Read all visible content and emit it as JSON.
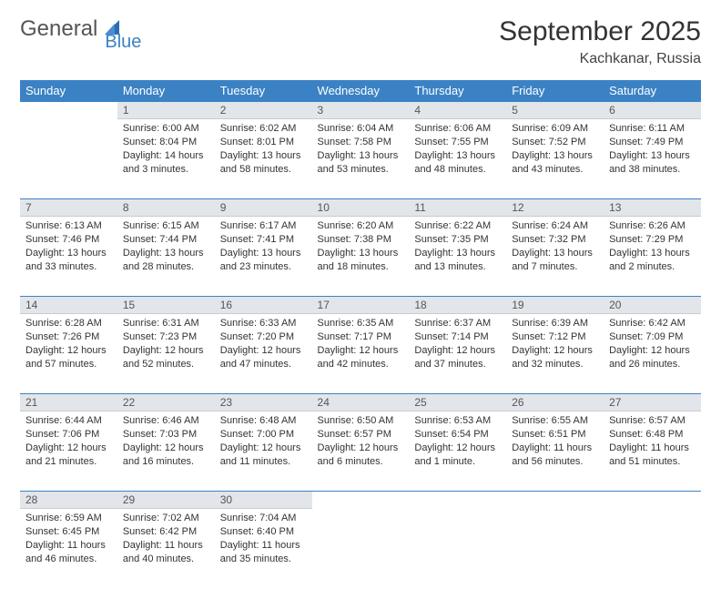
{
  "logo": {
    "text1": "General",
    "text2": "Blue"
  },
  "title": "September 2025",
  "location": "Kachkanar, Russia",
  "columns": [
    "Sunday",
    "Monday",
    "Tuesday",
    "Wednesday",
    "Thursday",
    "Friday",
    "Saturday"
  ],
  "colors": {
    "header_bg": "#3b82c4",
    "header_text": "#ffffff",
    "daynum_bg": "#e2e6ea",
    "row_border": "#3b82c4",
    "body_text": "#333333",
    "page_bg": "#ffffff"
  },
  "fonts": {
    "title_size_pt": 22,
    "location_size_pt": 12,
    "header_size_pt": 10,
    "cell_size_pt": 8
  },
  "weeks": [
    {
      "nums": [
        "",
        "1",
        "2",
        "3",
        "4",
        "5",
        "6"
      ],
      "cells": [
        {
          "sunrise": "",
          "sunset": "",
          "daylight": ""
        },
        {
          "sunrise": "Sunrise: 6:00 AM",
          "sunset": "Sunset: 8:04 PM",
          "daylight": "Daylight: 14 hours and 3 minutes."
        },
        {
          "sunrise": "Sunrise: 6:02 AM",
          "sunset": "Sunset: 8:01 PM",
          "daylight": "Daylight: 13 hours and 58 minutes."
        },
        {
          "sunrise": "Sunrise: 6:04 AM",
          "sunset": "Sunset: 7:58 PM",
          "daylight": "Daylight: 13 hours and 53 minutes."
        },
        {
          "sunrise": "Sunrise: 6:06 AM",
          "sunset": "Sunset: 7:55 PM",
          "daylight": "Daylight: 13 hours and 48 minutes."
        },
        {
          "sunrise": "Sunrise: 6:09 AM",
          "sunset": "Sunset: 7:52 PM",
          "daylight": "Daylight: 13 hours and 43 minutes."
        },
        {
          "sunrise": "Sunrise: 6:11 AM",
          "sunset": "Sunset: 7:49 PM",
          "daylight": "Daylight: 13 hours and 38 minutes."
        }
      ]
    },
    {
      "nums": [
        "7",
        "8",
        "9",
        "10",
        "11",
        "12",
        "13"
      ],
      "cells": [
        {
          "sunrise": "Sunrise: 6:13 AM",
          "sunset": "Sunset: 7:46 PM",
          "daylight": "Daylight: 13 hours and 33 minutes."
        },
        {
          "sunrise": "Sunrise: 6:15 AM",
          "sunset": "Sunset: 7:44 PM",
          "daylight": "Daylight: 13 hours and 28 minutes."
        },
        {
          "sunrise": "Sunrise: 6:17 AM",
          "sunset": "Sunset: 7:41 PM",
          "daylight": "Daylight: 13 hours and 23 minutes."
        },
        {
          "sunrise": "Sunrise: 6:20 AM",
          "sunset": "Sunset: 7:38 PM",
          "daylight": "Daylight: 13 hours and 18 minutes."
        },
        {
          "sunrise": "Sunrise: 6:22 AM",
          "sunset": "Sunset: 7:35 PM",
          "daylight": "Daylight: 13 hours and 13 minutes."
        },
        {
          "sunrise": "Sunrise: 6:24 AM",
          "sunset": "Sunset: 7:32 PM",
          "daylight": "Daylight: 13 hours and 7 minutes."
        },
        {
          "sunrise": "Sunrise: 6:26 AM",
          "sunset": "Sunset: 7:29 PM",
          "daylight": "Daylight: 13 hours and 2 minutes."
        }
      ]
    },
    {
      "nums": [
        "14",
        "15",
        "16",
        "17",
        "18",
        "19",
        "20"
      ],
      "cells": [
        {
          "sunrise": "Sunrise: 6:28 AM",
          "sunset": "Sunset: 7:26 PM",
          "daylight": "Daylight: 12 hours and 57 minutes."
        },
        {
          "sunrise": "Sunrise: 6:31 AM",
          "sunset": "Sunset: 7:23 PM",
          "daylight": "Daylight: 12 hours and 52 minutes."
        },
        {
          "sunrise": "Sunrise: 6:33 AM",
          "sunset": "Sunset: 7:20 PM",
          "daylight": "Daylight: 12 hours and 47 minutes."
        },
        {
          "sunrise": "Sunrise: 6:35 AM",
          "sunset": "Sunset: 7:17 PM",
          "daylight": "Daylight: 12 hours and 42 minutes."
        },
        {
          "sunrise": "Sunrise: 6:37 AM",
          "sunset": "Sunset: 7:14 PM",
          "daylight": "Daylight: 12 hours and 37 minutes."
        },
        {
          "sunrise": "Sunrise: 6:39 AM",
          "sunset": "Sunset: 7:12 PM",
          "daylight": "Daylight: 12 hours and 32 minutes."
        },
        {
          "sunrise": "Sunrise: 6:42 AM",
          "sunset": "Sunset: 7:09 PM",
          "daylight": "Daylight: 12 hours and 26 minutes."
        }
      ]
    },
    {
      "nums": [
        "21",
        "22",
        "23",
        "24",
        "25",
        "26",
        "27"
      ],
      "cells": [
        {
          "sunrise": "Sunrise: 6:44 AM",
          "sunset": "Sunset: 7:06 PM",
          "daylight": "Daylight: 12 hours and 21 minutes."
        },
        {
          "sunrise": "Sunrise: 6:46 AM",
          "sunset": "Sunset: 7:03 PM",
          "daylight": "Daylight: 12 hours and 16 minutes."
        },
        {
          "sunrise": "Sunrise: 6:48 AM",
          "sunset": "Sunset: 7:00 PM",
          "daylight": "Daylight: 12 hours and 11 minutes."
        },
        {
          "sunrise": "Sunrise: 6:50 AM",
          "sunset": "Sunset: 6:57 PM",
          "daylight": "Daylight: 12 hours and 6 minutes."
        },
        {
          "sunrise": "Sunrise: 6:53 AM",
          "sunset": "Sunset: 6:54 PM",
          "daylight": "Daylight: 12 hours and 1 minute."
        },
        {
          "sunrise": "Sunrise: 6:55 AM",
          "sunset": "Sunset: 6:51 PM",
          "daylight": "Daylight: 11 hours and 56 minutes."
        },
        {
          "sunrise": "Sunrise: 6:57 AM",
          "sunset": "Sunset: 6:48 PM",
          "daylight": "Daylight: 11 hours and 51 minutes."
        }
      ]
    },
    {
      "nums": [
        "28",
        "29",
        "30",
        "",
        "",
        "",
        ""
      ],
      "cells": [
        {
          "sunrise": "Sunrise: 6:59 AM",
          "sunset": "Sunset: 6:45 PM",
          "daylight": "Daylight: 11 hours and 46 minutes."
        },
        {
          "sunrise": "Sunrise: 7:02 AM",
          "sunset": "Sunset: 6:42 PM",
          "daylight": "Daylight: 11 hours and 40 minutes."
        },
        {
          "sunrise": "Sunrise: 7:04 AM",
          "sunset": "Sunset: 6:40 PM",
          "daylight": "Daylight: 11 hours and 35 minutes."
        },
        {
          "sunrise": "",
          "sunset": "",
          "daylight": ""
        },
        {
          "sunrise": "",
          "sunset": "",
          "daylight": ""
        },
        {
          "sunrise": "",
          "sunset": "",
          "daylight": ""
        },
        {
          "sunrise": "",
          "sunset": "",
          "daylight": ""
        }
      ]
    }
  ]
}
